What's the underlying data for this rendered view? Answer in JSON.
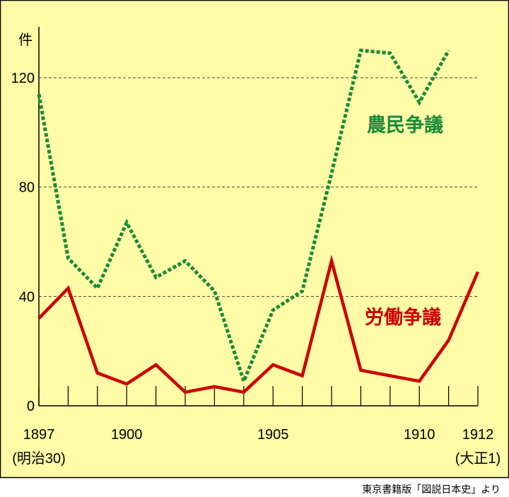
{
  "chart_data": {
    "type": "line",
    "unit_label": "件",
    "x": [
      1897,
      1898,
      1899,
      1900,
      1901,
      1902,
      1903,
      1904,
      1905,
      1906,
      1907,
      1908,
      1909,
      1910,
      1911,
      1912
    ],
    "x_tick_labels": [
      {
        "value": 1897,
        "label": "1897",
        "sublabel": "(明治30)"
      },
      {
        "value": 1900,
        "label": "1900",
        "sublabel": ""
      },
      {
        "value": 1905,
        "label": "1905",
        "sublabel": ""
      },
      {
        "value": 1910,
        "label": "1910",
        "sublabel": ""
      },
      {
        "value": 1912,
        "label": "1912",
        "sublabel": "(大正1)"
      }
    ],
    "y_ticks": [
      0,
      40,
      80,
      120
    ],
    "ylim": [
      0,
      138
    ],
    "xlim": [
      1897,
      1912
    ],
    "grid": "dashed horizontal at y ticks",
    "series": [
      {
        "name": "農民争議",
        "color": "#1a8a3a",
        "style": "dotted",
        "x": [
          1897,
          1898,
          1899,
          1900,
          1901,
          1902,
          1903,
          1904,
          1905,
          1906,
          1907,
          1908,
          1909,
          1910,
          1911
        ],
        "values": [
          114,
          54,
          43,
          67,
          47,
          53,
          42,
          9,
          35,
          42,
          85,
          130,
          129,
          111,
          130
        ]
      },
      {
        "name": "労働争議",
        "color": "#cc0000",
        "style": "solid",
        "x": [
          1897,
          1898,
          1899,
          1900,
          1901,
          1902,
          1903,
          1904,
          1905,
          1906,
          1907,
          1908,
          1909,
          1910,
          1911,
          1912
        ],
        "values": [
          32,
          43,
          12,
          8,
          15,
          5,
          7,
          5,
          15,
          11,
          53,
          13,
          11,
          9,
          24,
          49
        ]
      }
    ]
  },
  "source": "東京書籍版「図説日本史」より",
  "colors": {
    "background": "#fffba6",
    "border": "#000000",
    "grid": "#444444"
  }
}
